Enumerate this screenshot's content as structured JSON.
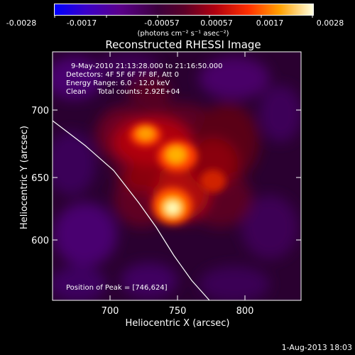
{
  "colorbar": {
    "tick_labels": [
      "-0.0028",
      "-0.0017",
      "-0.00057",
      "0.00057",
      "0.0017",
      "0.0028"
    ],
    "units_label": "(photons cm⁻² s⁻¹ asec⁻²)"
  },
  "title": "Reconstructed RHESSI Image",
  "info": {
    "time_range": "9-May-2010 21:13:28.000 to 21:16:50.000",
    "detectors": "Detectors: 4F 5F 6F 7F 8F, Att 0",
    "energy_range": "Energy Range: 6.0 - 12.0 keV",
    "clean_counts": "Clean     Total counts: 2.92E+04",
    "peak_position": "Position of Peak = [746,624]"
  },
  "axes": {
    "xlabel": "Heliocentric X (arcsec)",
    "ylabel": "Heliocentric Y (arcsec)",
    "x_ticks": [
      "700",
      "750",
      "800"
    ],
    "y_ticks": [
      "700",
      "650",
      "600"
    ],
    "x_range": [
      656,
      842
    ],
    "y_range": [
      548,
      734
    ]
  },
  "timestamp": "1-Aug-2013 18:03",
  "colors": {
    "background": "#000000",
    "foreground": "#ffffff",
    "colormap_low": "#0000ff",
    "colormap_high": "#ffffe0"
  },
  "image_data": {
    "colormap": "blue-purple-red-orange-yellow-white",
    "peaks_arcsec": [
      {
        "x": 746,
        "y": 624,
        "level": 1.0
      },
      {
        "x": 740,
        "y": 660,
        "level": 0.85
      },
      {
        "x": 722,
        "y": 680,
        "level": 0.75
      }
    ],
    "limb_curve_arcsec": [
      [
        656,
        692
      ],
      [
        700,
        660
      ],
      [
        730,
        630
      ],
      [
        755,
        590
      ],
      [
        770,
        555
      ]
    ]
  }
}
